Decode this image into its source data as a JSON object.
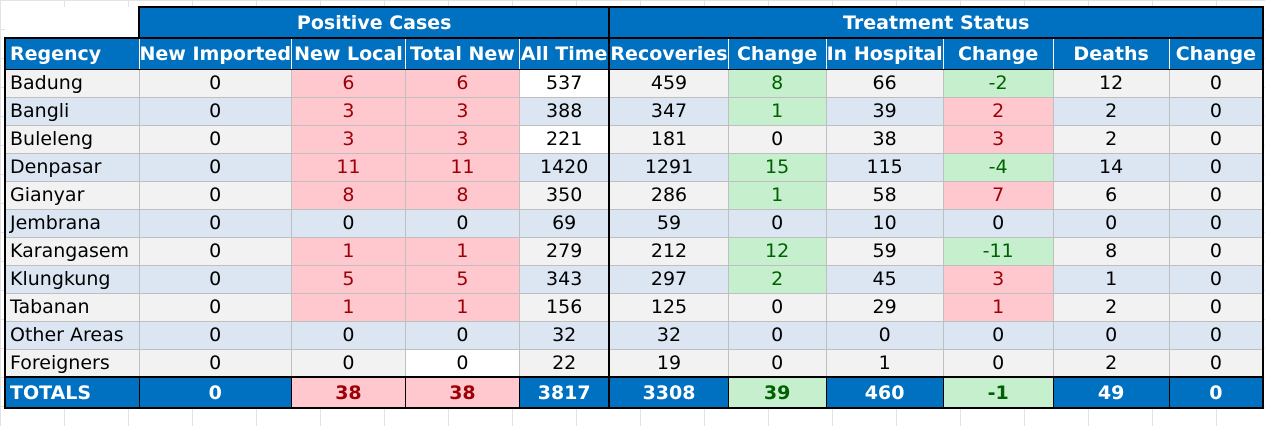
{
  "headers": {
    "group_positive": "Positive Cases",
    "group_treatment": "Treatment Status",
    "columns": [
      "Regency",
      "New Imported",
      "New Local",
      "Total New",
      "All Time",
      "Recoveries",
      "Change",
      "In Hospital",
      "Change",
      "Deaths",
      "Change"
    ]
  },
  "rows": [
    {
      "region": "Badung",
      "vals": [
        "0",
        "6",
        "6",
        "537",
        "459",
        "8",
        "66",
        "-2",
        "12",
        "0"
      ]
    },
    {
      "region": "Bangli",
      "vals": [
        "0",
        "3",
        "3",
        "388",
        "347",
        "1",
        "39",
        "2",
        "2",
        "0"
      ]
    },
    {
      "region": "Buleleng",
      "vals": [
        "0",
        "3",
        "3",
        "221",
        "181",
        "0",
        "38",
        "3",
        "2",
        "0"
      ]
    },
    {
      "region": "Denpasar",
      "vals": [
        "0",
        "11",
        "11",
        "1420",
        "1291",
        "15",
        "115",
        "-4",
        "14",
        "0"
      ]
    },
    {
      "region": "Gianyar",
      "vals": [
        "0",
        "8",
        "8",
        "350",
        "286",
        "1",
        "58",
        "7",
        "6",
        "0"
      ]
    },
    {
      "region": "Jembrana",
      "vals": [
        "0",
        "0",
        "0",
        "69",
        "59",
        "0",
        "10",
        "0",
        "0",
        "0"
      ]
    },
    {
      "region": "Karangasem",
      "vals": [
        "0",
        "1",
        "1",
        "279",
        "212",
        "12",
        "59",
        "-11",
        "8",
        "0"
      ]
    },
    {
      "region": "Klungkung",
      "vals": [
        "0",
        "5",
        "5",
        "343",
        "297",
        "2",
        "45",
        "3",
        "1",
        "0"
      ]
    },
    {
      "region": "Tabanan",
      "vals": [
        "0",
        "1",
        "1",
        "156",
        "125",
        "0",
        "29",
        "1",
        "2",
        "0"
      ]
    },
    {
      "region": "Other Areas",
      "vals": [
        "0",
        "0",
        "0",
        "32",
        "32",
        "0",
        "0",
        "0",
        "0",
        "0"
      ]
    },
    {
      "region": "Foreigners",
      "vals": [
        "0",
        "0",
        "0",
        "22",
        "19",
        "0",
        "1",
        "0",
        "2",
        "0"
      ]
    }
  ],
  "totals": {
    "region": "TOTALS",
    "vals": [
      "0",
      "38",
      "38",
      "3817",
      "3308",
      "39",
      "460",
      "-1",
      "49",
      "0"
    ]
  },
  "colors": {
    "header_blue": "#0070c0",
    "increase_fill": "#ffc7ce",
    "increase_text": "#9c0006",
    "decrease_fill": "#c6efce",
    "decrease_text": "#006100",
    "row_light": "#f2f2f2",
    "row_blue": "#dce6f2"
  }
}
